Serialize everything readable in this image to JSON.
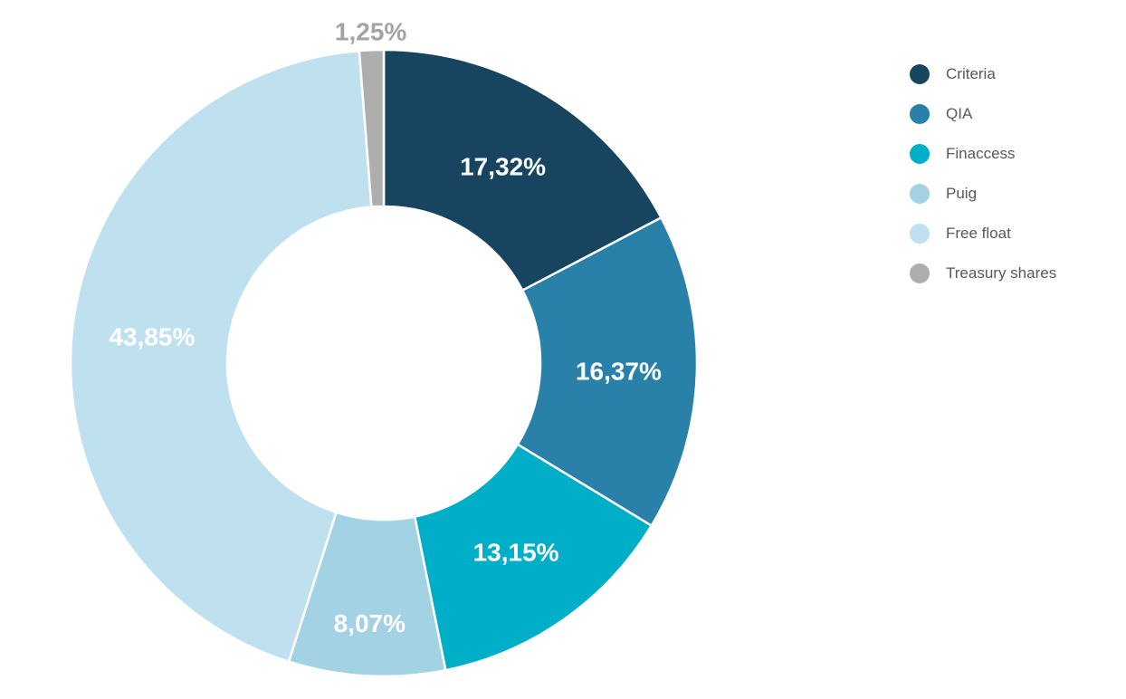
{
  "chart_data": {
    "type": "pie",
    "variant": "donut",
    "start_angle_deg": 0,
    "direction": "clockwise",
    "legend_position": "right",
    "legend_text_color": "#58595b",
    "separator_color": "#ffffff",
    "slices": [
      {
        "label": "Criteria",
        "value": 17.32,
        "display": "17,32%",
        "color": "#17455f",
        "label_color": "#ffffff",
        "label_outside": false
      },
      {
        "label": "QIA",
        "value": 16.37,
        "display": "16,37%",
        "color": "#2980a8",
        "label_color": "#ffffff",
        "label_outside": false
      },
      {
        "label": "Finaccess",
        "value": 13.15,
        "display": "13,15%",
        "color": "#00aec7",
        "label_color": "#ffffff",
        "label_outside": false
      },
      {
        "label": "Puig",
        "value": 8.07,
        "display": "8,07%",
        "color": "#a2d2e4",
        "label_color": "#ffffff",
        "label_outside": false
      },
      {
        "label": "Free float",
        "value": 43.85,
        "display": "43,85%",
        "color": "#bfe0ee",
        "label_color": "#ffffff",
        "label_outside": false
      },
      {
        "label": "Treasury shares",
        "value": 1.25,
        "display": "1,25%",
        "color": "#aeaeae",
        "label_color": "#a3a3a3",
        "label_outside": true
      }
    ]
  }
}
